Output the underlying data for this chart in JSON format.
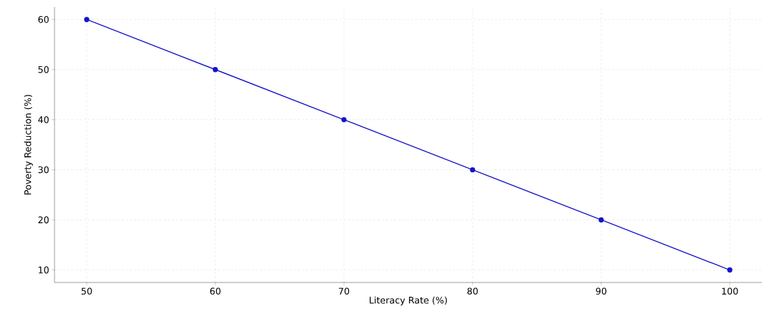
{
  "chart_data": {
    "type": "line",
    "xlabel": "Literacy Rate (%)",
    "ylabel": "Poverty Reduction (%)",
    "x": [
      50,
      60,
      70,
      80,
      90,
      100
    ],
    "series": [
      {
        "color": "#1414c8",
        "values": [
          60,
          50,
          40,
          30,
          20,
          10
        ]
      }
    ],
    "xlim": [
      47.5,
      102.5
    ],
    "ylim": [
      7.5,
      62.5
    ],
    "xticks": [
      50,
      60,
      70,
      80,
      90,
      100
    ],
    "yticks": [
      10,
      20,
      30,
      40,
      50,
      60
    ],
    "grid": true,
    "marker": "circle",
    "line_style": "solid"
  }
}
